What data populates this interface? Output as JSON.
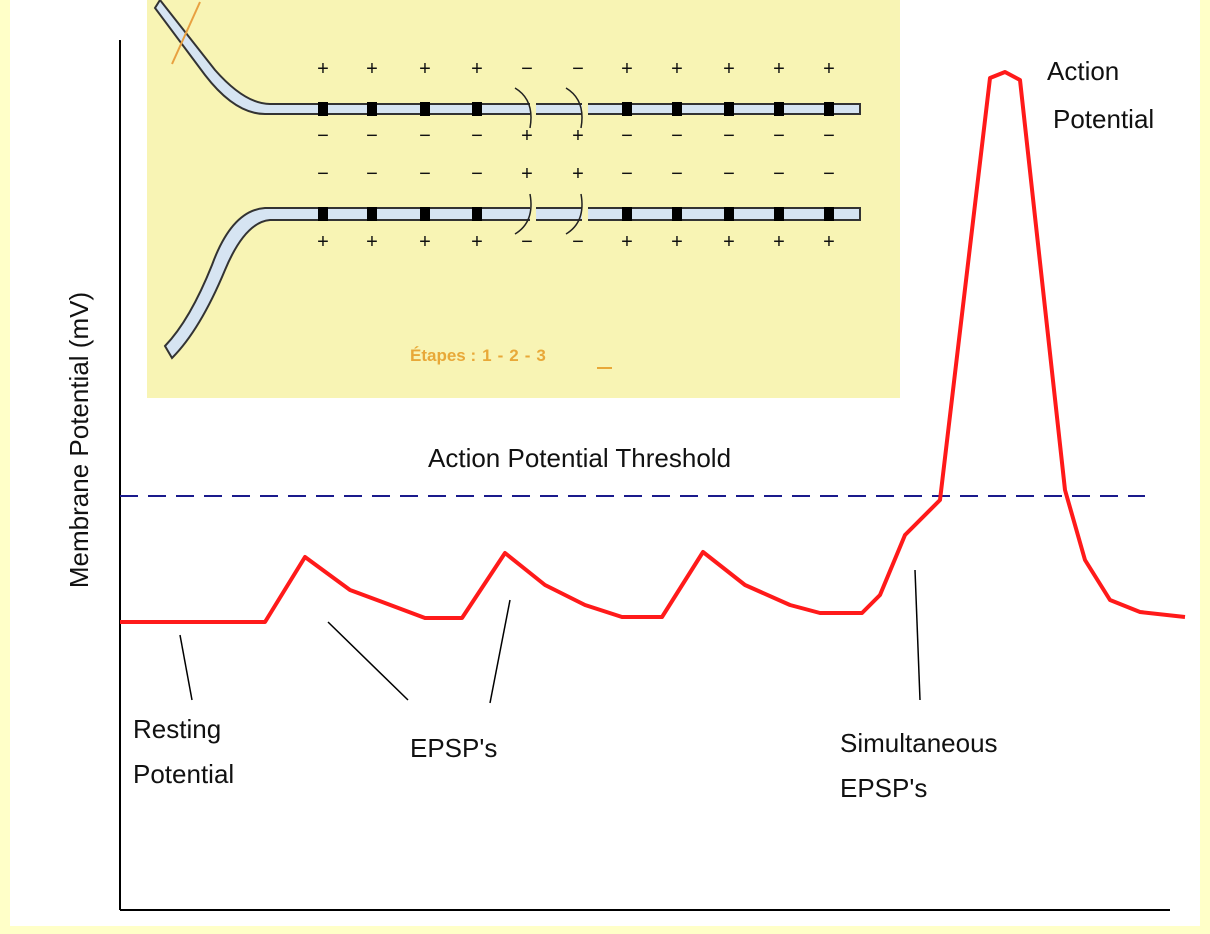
{
  "y_axis_label": "Membrane Potential (mV)",
  "threshold_label": "Action Potential Threshold",
  "action_potential": [
    "Action",
    "Potential"
  ],
  "resting_potential": [
    "Resting",
    "Potential"
  ],
  "epsps": "EPSP's",
  "simultaneous_epsps": [
    "Simultaneous",
    "EPSP's"
  ],
  "inset": {
    "charges": [
      [
        "+",
        "+",
        "+",
        "+",
        "−",
        "−",
        "+",
        "+",
        "+",
        "+",
        "+"
      ],
      [
        "−",
        "−",
        "−",
        "−",
        "+",
        "+",
        "−",
        "−",
        "−",
        "−",
        "−"
      ],
      [
        "−",
        "−",
        "−",
        "−",
        "+",
        "+",
        "−",
        "−",
        "−",
        "−",
        "−"
      ],
      [
        "+",
        "+",
        "+",
        "+",
        "−",
        "−",
        "+",
        "+",
        "+",
        "+",
        "+"
      ]
    ],
    "steps": [
      "Étapes :",
      "1",
      "-",
      "2",
      "-",
      "3"
    ]
  }
}
